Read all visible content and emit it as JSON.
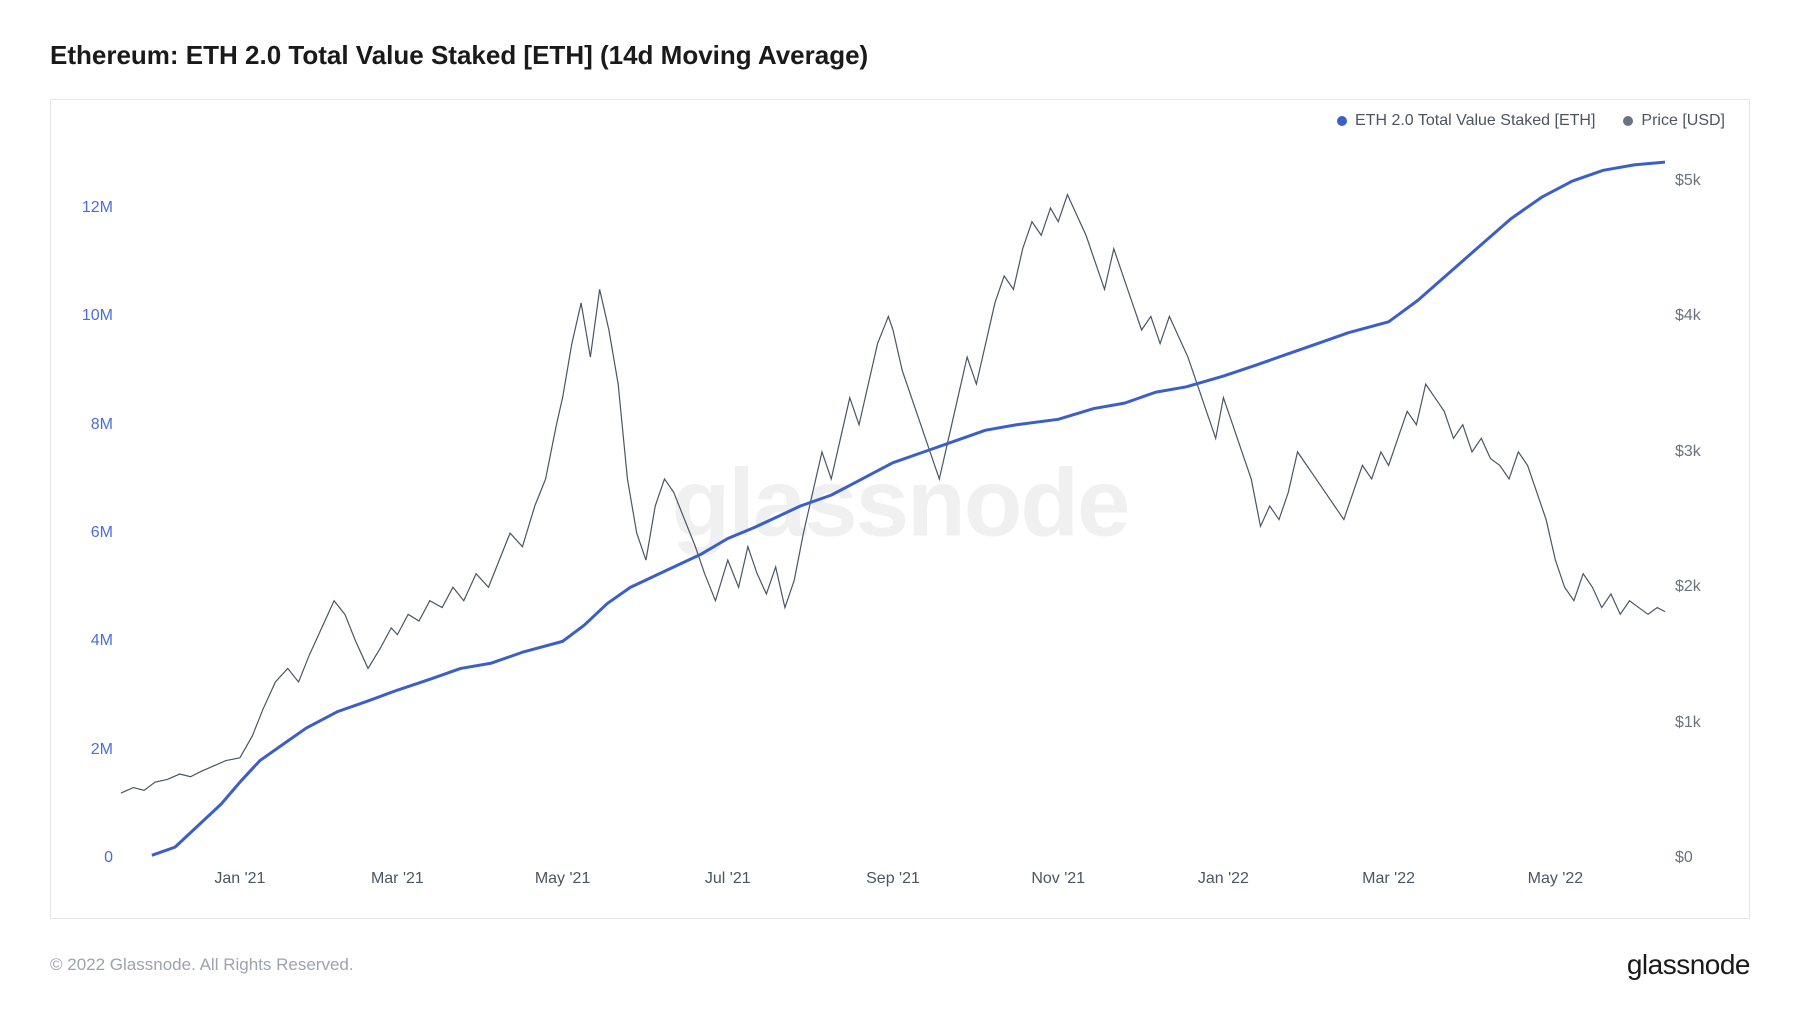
{
  "title": "Ethereum: ETH 2.0 Total Value Staked [ETH] (14d Moving Average)",
  "copyright": "© 2022 Glassnode. All Rights Reserved.",
  "brand": "glassnode",
  "watermark": "glassnode",
  "legend": {
    "series1": {
      "label": "ETH 2.0 Total Value Staked [ETH]",
      "color": "#3b5fc9"
    },
    "series2": {
      "label": "Price [USD]",
      "color": "#6b7280"
    }
  },
  "chart": {
    "background_color": "#ffffff",
    "border_color": "#e5e7eb",
    "x_axis": {
      "ticks": [
        {
          "t": 0.077,
          "label": "Jan '21"
        },
        {
          "t": 0.179,
          "label": "Mar '21"
        },
        {
          "t": 0.286,
          "label": "May '21"
        },
        {
          "t": 0.393,
          "label": "Jul '21"
        },
        {
          "t": 0.5,
          "label": "Sep '21"
        },
        {
          "t": 0.607,
          "label": "Nov '21"
        },
        {
          "t": 0.714,
          "label": "Jan '22"
        },
        {
          "t": 0.821,
          "label": "Mar '22"
        },
        {
          "t": 0.929,
          "label": "May '22"
        }
      ]
    },
    "y_left": {
      "min": 0,
      "max": 13000000,
      "ticks": [
        {
          "v": 0,
          "label": "0"
        },
        {
          "v": 2000000,
          "label": "2M"
        },
        {
          "v": 4000000,
          "label": "4M"
        },
        {
          "v": 6000000,
          "label": "6M"
        },
        {
          "v": 8000000,
          "label": "8M"
        },
        {
          "v": 10000000,
          "label": "10M"
        },
        {
          "v": 12000000,
          "label": "12M"
        }
      ],
      "color": "#4a6fd8"
    },
    "y_right": {
      "min": 0,
      "max": 5200,
      "ticks": [
        {
          "v": 0,
          "label": "$0"
        },
        {
          "v": 1000,
          "label": "$1k"
        },
        {
          "v": 2000,
          "label": "$2k"
        },
        {
          "v": 3000,
          "label": "$3k"
        },
        {
          "v": 4000,
          "label": "$4k"
        },
        {
          "v": 5000,
          "label": "$5k"
        }
      ],
      "color": "#6b7280"
    },
    "staked_series": {
      "color": "#3b5fc9",
      "line_width": 3,
      "points": [
        [
          0.02,
          50000
        ],
        [
          0.035,
          200000
        ],
        [
          0.05,
          600000
        ],
        [
          0.065,
          1000000
        ],
        [
          0.077,
          1400000
        ],
        [
          0.09,
          1800000
        ],
        [
          0.105,
          2100000
        ],
        [
          0.12,
          2400000
        ],
        [
          0.14,
          2700000
        ],
        [
          0.16,
          2900000
        ],
        [
          0.179,
          3100000
        ],
        [
          0.2,
          3300000
        ],
        [
          0.22,
          3500000
        ],
        [
          0.24,
          3600000
        ],
        [
          0.26,
          3800000
        ],
        [
          0.286,
          4000000
        ],
        [
          0.3,
          4300000
        ],
        [
          0.315,
          4700000
        ],
        [
          0.33,
          5000000
        ],
        [
          0.345,
          5200000
        ],
        [
          0.36,
          5400000
        ],
        [
          0.375,
          5600000
        ],
        [
          0.393,
          5900000
        ],
        [
          0.41,
          6100000
        ],
        [
          0.425,
          6300000
        ],
        [
          0.44,
          6500000
        ],
        [
          0.46,
          6700000
        ],
        [
          0.48,
          7000000
        ],
        [
          0.5,
          7300000
        ],
        [
          0.52,
          7500000
        ],
        [
          0.54,
          7700000
        ],
        [
          0.56,
          7900000
        ],
        [
          0.58,
          8000000
        ],
        [
          0.607,
          8100000
        ],
        [
          0.63,
          8300000
        ],
        [
          0.65,
          8400000
        ],
        [
          0.67,
          8600000
        ],
        [
          0.69,
          8700000
        ],
        [
          0.714,
          8900000
        ],
        [
          0.735,
          9100000
        ],
        [
          0.755,
          9300000
        ],
        [
          0.775,
          9500000
        ],
        [
          0.795,
          9700000
        ],
        [
          0.821,
          9900000
        ],
        [
          0.84,
          10300000
        ],
        [
          0.86,
          10800000
        ],
        [
          0.88,
          11300000
        ],
        [
          0.9,
          11800000
        ],
        [
          0.92,
          12200000
        ],
        [
          0.94,
          12500000
        ],
        [
          0.96,
          12700000
        ],
        [
          0.98,
          12800000
        ],
        [
          1.0,
          12850000
        ]
      ]
    },
    "price_series": {
      "color": "#4b5563",
      "line_width": 1.2,
      "points": [
        [
          0.0,
          480
        ],
        [
          0.008,
          520
        ],
        [
          0.015,
          500
        ],
        [
          0.022,
          560
        ],
        [
          0.03,
          580
        ],
        [
          0.038,
          620
        ],
        [
          0.045,
          600
        ],
        [
          0.052,
          640
        ],
        [
          0.06,
          680
        ],
        [
          0.068,
          720
        ],
        [
          0.077,
          740
        ],
        [
          0.085,
          900
        ],
        [
          0.092,
          1100
        ],
        [
          0.1,
          1300
        ],
        [
          0.108,
          1400
        ],
        [
          0.115,
          1300
        ],
        [
          0.122,
          1500
        ],
        [
          0.13,
          1700
        ],
        [
          0.138,
          1900
        ],
        [
          0.145,
          1800
        ],
        [
          0.152,
          1600
        ],
        [
          0.16,
          1400
        ],
        [
          0.168,
          1550
        ],
        [
          0.175,
          1700
        ],
        [
          0.179,
          1650
        ],
        [
          0.186,
          1800
        ],
        [
          0.193,
          1750
        ],
        [
          0.2,
          1900
        ],
        [
          0.208,
          1850
        ],
        [
          0.215,
          2000
        ],
        [
          0.222,
          1900
        ],
        [
          0.23,
          2100
        ],
        [
          0.238,
          2000
        ],
        [
          0.245,
          2200
        ],
        [
          0.252,
          2400
        ],
        [
          0.26,
          2300
        ],
        [
          0.268,
          2600
        ],
        [
          0.275,
          2800
        ],
        [
          0.282,
          3200
        ],
        [
          0.286,
          3400
        ],
        [
          0.292,
          3800
        ],
        [
          0.298,
          4100
        ],
        [
          0.304,
          3700
        ],
        [
          0.31,
          4200
        ],
        [
          0.316,
          3900
        ],
        [
          0.322,
          3500
        ],
        [
          0.328,
          2800
        ],
        [
          0.334,
          2400
        ],
        [
          0.34,
          2200
        ],
        [
          0.346,
          2600
        ],
        [
          0.352,
          2800
        ],
        [
          0.358,
          2700
        ],
        [
          0.365,
          2500
        ],
        [
          0.372,
          2300
        ],
        [
          0.378,
          2100
        ],
        [
          0.385,
          1900
        ],
        [
          0.393,
          2200
        ],
        [
          0.4,
          2000
        ],
        [
          0.406,
          2300
        ],
        [
          0.412,
          2100
        ],
        [
          0.418,
          1950
        ],
        [
          0.424,
          2150
        ],
        [
          0.43,
          1850
        ],
        [
          0.436,
          2050
        ],
        [
          0.442,
          2400
        ],
        [
          0.448,
          2700
        ],
        [
          0.454,
          3000
        ],
        [
          0.46,
          2800
        ],
        [
          0.466,
          3100
        ],
        [
          0.472,
          3400
        ],
        [
          0.478,
          3200
        ],
        [
          0.484,
          3500
        ],
        [
          0.49,
          3800
        ],
        [
          0.497,
          4000
        ],
        [
          0.5,
          3900
        ],
        [
          0.506,
          3600
        ],
        [
          0.512,
          3400
        ],
        [
          0.518,
          3200
        ],
        [
          0.524,
          3000
        ],
        [
          0.53,
          2800
        ],
        [
          0.536,
          3100
        ],
        [
          0.542,
          3400
        ],
        [
          0.548,
          3700
        ],
        [
          0.554,
          3500
        ],
        [
          0.56,
          3800
        ],
        [
          0.566,
          4100
        ],
        [
          0.572,
          4300
        ],
        [
          0.578,
          4200
        ],
        [
          0.584,
          4500
        ],
        [
          0.59,
          4700
        ],
        [
          0.596,
          4600
        ],
        [
          0.602,
          4800
        ],
        [
          0.607,
          4700
        ],
        [
          0.613,
          4900
        ],
        [
          0.619,
          4750
        ],
        [
          0.625,
          4600
        ],
        [
          0.631,
          4400
        ],
        [
          0.637,
          4200
        ],
        [
          0.643,
          4500
        ],
        [
          0.649,
          4300
        ],
        [
          0.655,
          4100
        ],
        [
          0.661,
          3900
        ],
        [
          0.667,
          4000
        ],
        [
          0.673,
          3800
        ],
        [
          0.679,
          4000
        ],
        [
          0.685,
          3850
        ],
        [
          0.691,
          3700
        ],
        [
          0.697,
          3500
        ],
        [
          0.703,
          3300
        ],
        [
          0.709,
          3100
        ],
        [
          0.714,
          3400
        ],
        [
          0.72,
          3200
        ],
        [
          0.726,
          3000
        ],
        [
          0.732,
          2800
        ],
        [
          0.738,
          2450
        ],
        [
          0.744,
          2600
        ],
        [
          0.75,
          2500
        ],
        [
          0.756,
          2700
        ],
        [
          0.762,
          3000
        ],
        [
          0.768,
          2900
        ],
        [
          0.774,
          2800
        ],
        [
          0.78,
          2700
        ],
        [
          0.786,
          2600
        ],
        [
          0.792,
          2500
        ],
        [
          0.798,
          2700
        ],
        [
          0.804,
          2900
        ],
        [
          0.81,
          2800
        ],
        [
          0.816,
          3000
        ],
        [
          0.821,
          2900
        ],
        [
          0.827,
          3100
        ],
        [
          0.833,
          3300
        ],
        [
          0.839,
          3200
        ],
        [
          0.845,
          3500
        ],
        [
          0.851,
          3400
        ],
        [
          0.857,
          3300
        ],
        [
          0.863,
          3100
        ],
        [
          0.869,
          3200
        ],
        [
          0.875,
          3000
        ],
        [
          0.881,
          3100
        ],
        [
          0.887,
          2950
        ],
        [
          0.893,
          2900
        ],
        [
          0.899,
          2800
        ],
        [
          0.905,
          3000
        ],
        [
          0.911,
          2900
        ],
        [
          0.917,
          2700
        ],
        [
          0.923,
          2500
        ],
        [
          0.929,
          2200
        ],
        [
          0.935,
          2000
        ],
        [
          0.941,
          1900
        ],
        [
          0.947,
          2100
        ],
        [
          0.953,
          2000
        ],
        [
          0.959,
          1850
        ],
        [
          0.965,
          1950
        ],
        [
          0.971,
          1800
        ],
        [
          0.977,
          1900
        ],
        [
          0.983,
          1850
        ],
        [
          0.989,
          1800
        ],
        [
          0.995,
          1850
        ],
        [
          1.0,
          1820
        ]
      ]
    }
  }
}
